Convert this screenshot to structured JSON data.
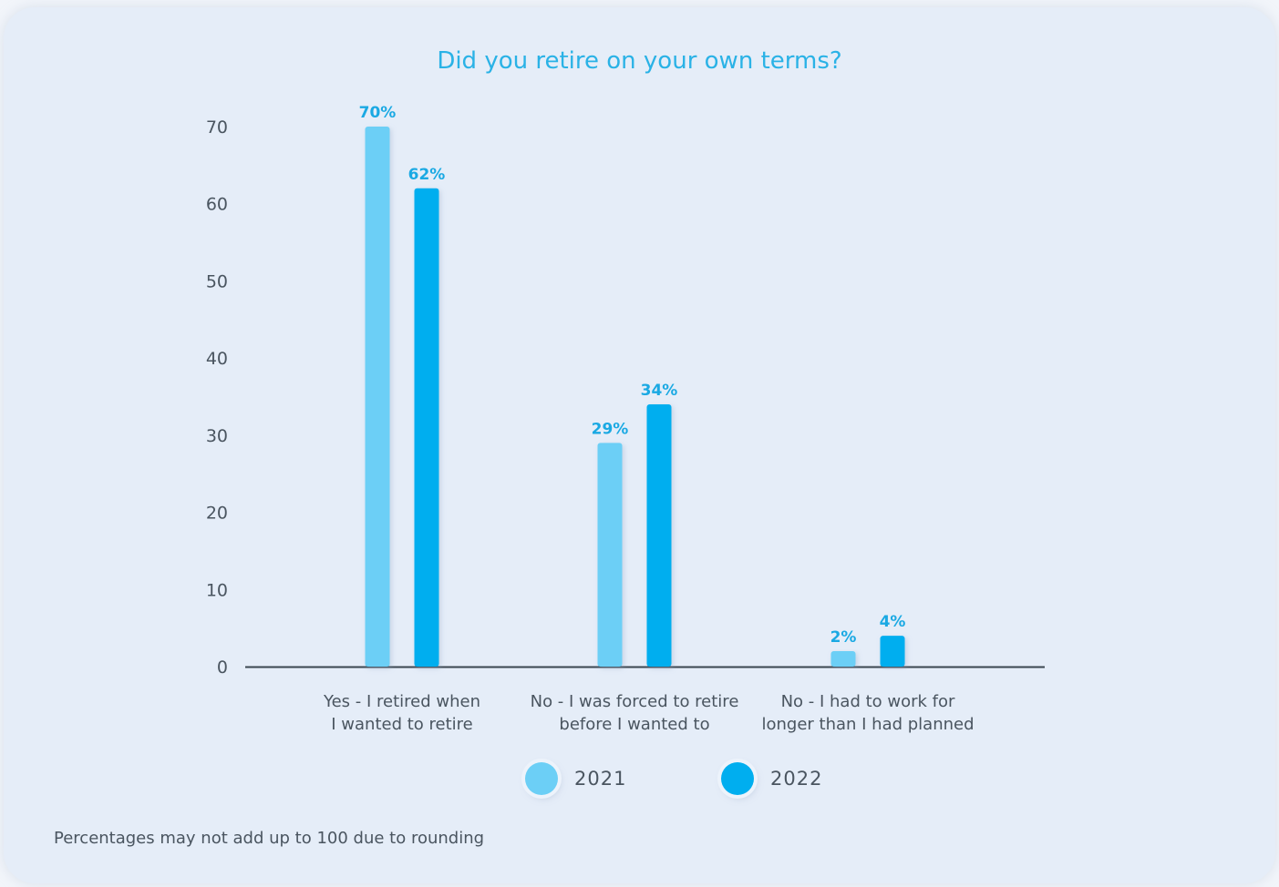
{
  "chart_data": {
    "type": "bar",
    "title": "Did you retire on your own terms?",
    "xlabel": "",
    "ylabel": "",
    "ylim": [
      0,
      70
    ],
    "yticks": [
      0,
      10,
      20,
      30,
      40,
      50,
      60,
      70
    ],
    "grid": false,
    "legend_position": "bottom-center",
    "categories": [
      [
        "Yes - I retired when",
        "I wanted to retire"
      ],
      [
        "No - I was forced to retire",
        "before I wanted to"
      ],
      [
        "No - I had to work for",
        "longer than I had planned"
      ]
    ],
    "series": [
      {
        "name": "2021",
        "color": "#6ccff6",
        "values": [
          70,
          29,
          2
        ],
        "labels": [
          "70%",
          "29%",
          "2%"
        ]
      },
      {
        "name": "2022",
        "color": "#00aeef",
        "values": [
          62,
          34,
          4
        ],
        "labels": [
          "62%",
          "34%",
          "4%"
        ]
      }
    ],
    "data_label_color": "#1aa9e3",
    "axis_color": "#3a4650",
    "footnote": "Percentages may not add up to 100 due to rounding"
  }
}
